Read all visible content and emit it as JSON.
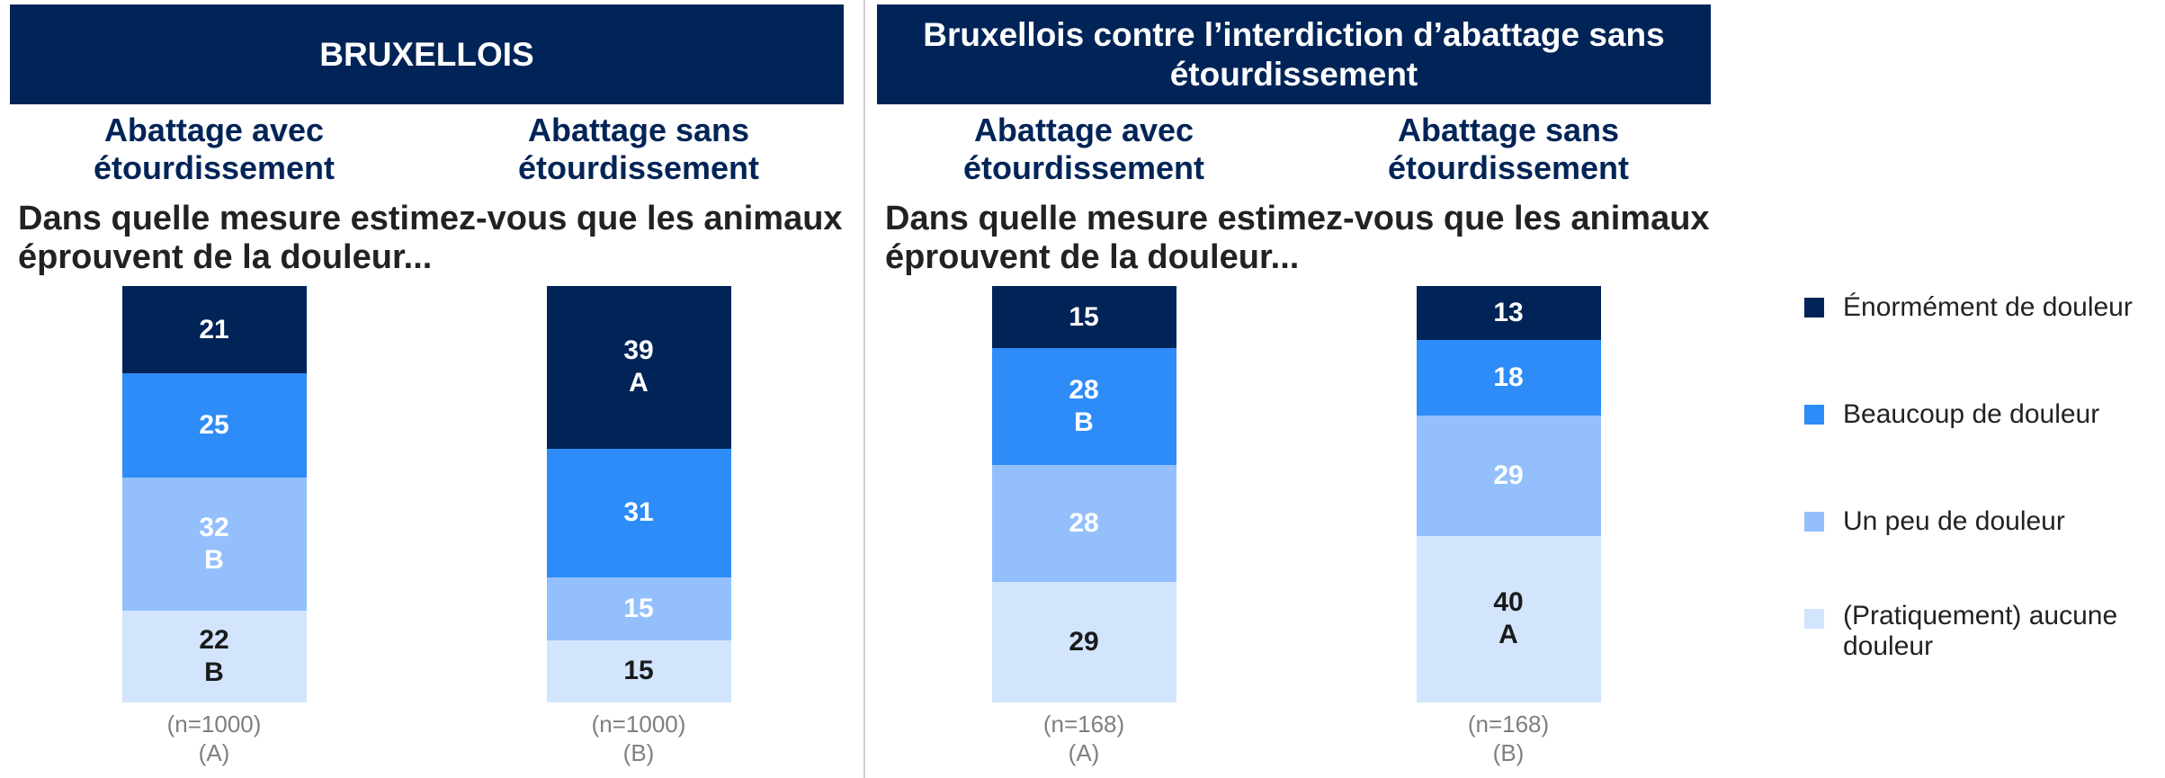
{
  "legend": [
    {
      "name": "Énormément de douleur",
      "color": "#002457"
    },
    {
      "name": "Beaucoup de douleur",
      "color": "#2d8cf7"
    },
    {
      "name": "Un peu de douleur",
      "color": "#93c0fc"
    },
    {
      "name": "(Pratiquement) aucune douleur",
      "color": "#d3e5fd"
    }
  ],
  "chart_data": [
    {
      "type": "bar",
      "stacked": true,
      "title": "BRUXELLOIS",
      "subtitle": "Dans quelle mesure estimez-vous que les animaux éprouvent de la douleur...",
      "categories": [
        "Abattage avec étourdissement",
        "Abattage sans étourdissement"
      ],
      "sample_sizes": [
        "(n=1000)",
        "(n=1000)"
      ],
      "groups": [
        "(A)",
        "(B)"
      ],
      "ylim": [
        0,
        100
      ],
      "series": [
        {
          "values": [
            21,
            39
          ],
          "significance": [
            null,
            "A"
          ]
        },
        {
          "values": [
            25,
            31
          ],
          "significance": [
            null,
            null
          ]
        },
        {
          "values": [
            32,
            15
          ],
          "significance": [
            "B",
            null
          ]
        },
        {
          "values": [
            22,
            15
          ],
          "significance": [
            "B",
            null
          ]
        }
      ]
    },
    {
      "type": "bar",
      "stacked": true,
      "title": "Bruxellois contre l’interdiction d’abattage sans étourdissement",
      "subtitle": "Dans quelle mesure estimez-vous que les animaux éprouvent de la douleur...",
      "categories": [
        "Abattage avec étourdissement",
        "Abattage sans étourdissement"
      ],
      "sample_sizes": [
        "(n=168)",
        "(n=168)"
      ],
      "groups": [
        "(A)",
        "(B)"
      ],
      "ylim": [
        0,
        100
      ],
      "series": [
        {
          "values": [
            15,
            13
          ],
          "significance": [
            null,
            null
          ]
        },
        {
          "values": [
            28,
            18
          ],
          "significance": [
            "B",
            null
          ]
        },
        {
          "values": [
            28,
            29
          ],
          "significance": [
            null,
            null
          ]
        },
        {
          "values": [
            29,
            40
          ],
          "significance": [
            null,
            "A"
          ]
        }
      ]
    }
  ]
}
